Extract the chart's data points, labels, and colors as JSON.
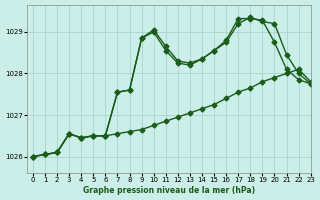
{
  "xlabel": "Graphe pression niveau de la mer (hPa)",
  "ylim": [
    1025.6,
    1029.65
  ],
  "xlim": [
    -0.5,
    23
  ],
  "yticks": [
    1026,
    1027,
    1028,
    1029
  ],
  "xticks": [
    0,
    1,
    2,
    3,
    4,
    5,
    6,
    7,
    8,
    9,
    10,
    11,
    12,
    13,
    14,
    15,
    16,
    17,
    18,
    19,
    20,
    21,
    22,
    23
  ],
  "bg_color": "#cceee8",
  "grid_color": "#aad4cc",
  "line_color": "#1a5c1a",
  "lines": [
    {
      "x": [
        0,
        1,
        2,
        3,
        4,
        5,
        6,
        7,
        8,
        9,
        10,
        11,
        12,
        13,
        14,
        15,
        16,
        17,
        18,
        19,
        20,
        21,
        22,
        23
      ],
      "y": [
        1026.0,
        1026.05,
        1026.1,
        1026.55,
        1026.45,
        1026.5,
        1026.5,
        1026.55,
        1026.6,
        1026.65,
        1026.75,
        1026.85,
        1026.95,
        1027.05,
        1027.15,
        1027.25,
        1027.4,
        1027.55,
        1027.65,
        1027.8,
        1027.9,
        1028.0,
        1028.1,
        1027.8
      ]
    },
    {
      "x": [
        0,
        1,
        2,
        3,
        4,
        5,
        6,
        7,
        8,
        9,
        10,
        11,
        12,
        13,
        14,
        15,
        16,
        17,
        18,
        19,
        20,
        21,
        22,
        23
      ],
      "y": [
        1026.0,
        1026.05,
        1026.1,
        1026.55,
        1026.45,
        1026.5,
        1026.5,
        1027.55,
        1027.6,
        1028.85,
        1029.05,
        1028.65,
        1028.3,
        1028.25,
        1028.35,
        1028.55,
        1028.75,
        1029.2,
        1029.35,
        1029.25,
        1029.2,
        1028.45,
        1028.0,
        1027.75
      ]
    },
    {
      "x": [
        0,
        1,
        2,
        3,
        4,
        5,
        6,
        7,
        8,
        9,
        10,
        11,
        12,
        13,
        14,
        15,
        16,
        17,
        18,
        19,
        20,
        21,
        22,
        23
      ],
      "y": [
        1026.0,
        1026.05,
        1026.1,
        1026.55,
        1026.45,
        1026.5,
        1026.5,
        1027.55,
        1027.6,
        1028.85,
        1029.0,
        1028.55,
        1028.25,
        1028.2,
        1028.35,
        1028.55,
        1028.8,
        1029.32,
        1029.32,
        1029.28,
        1028.75,
        1028.1,
        1027.85,
        1027.75
      ]
    }
  ],
  "marker": "D",
  "markersize": 2.5,
  "linewidth": 1.0
}
